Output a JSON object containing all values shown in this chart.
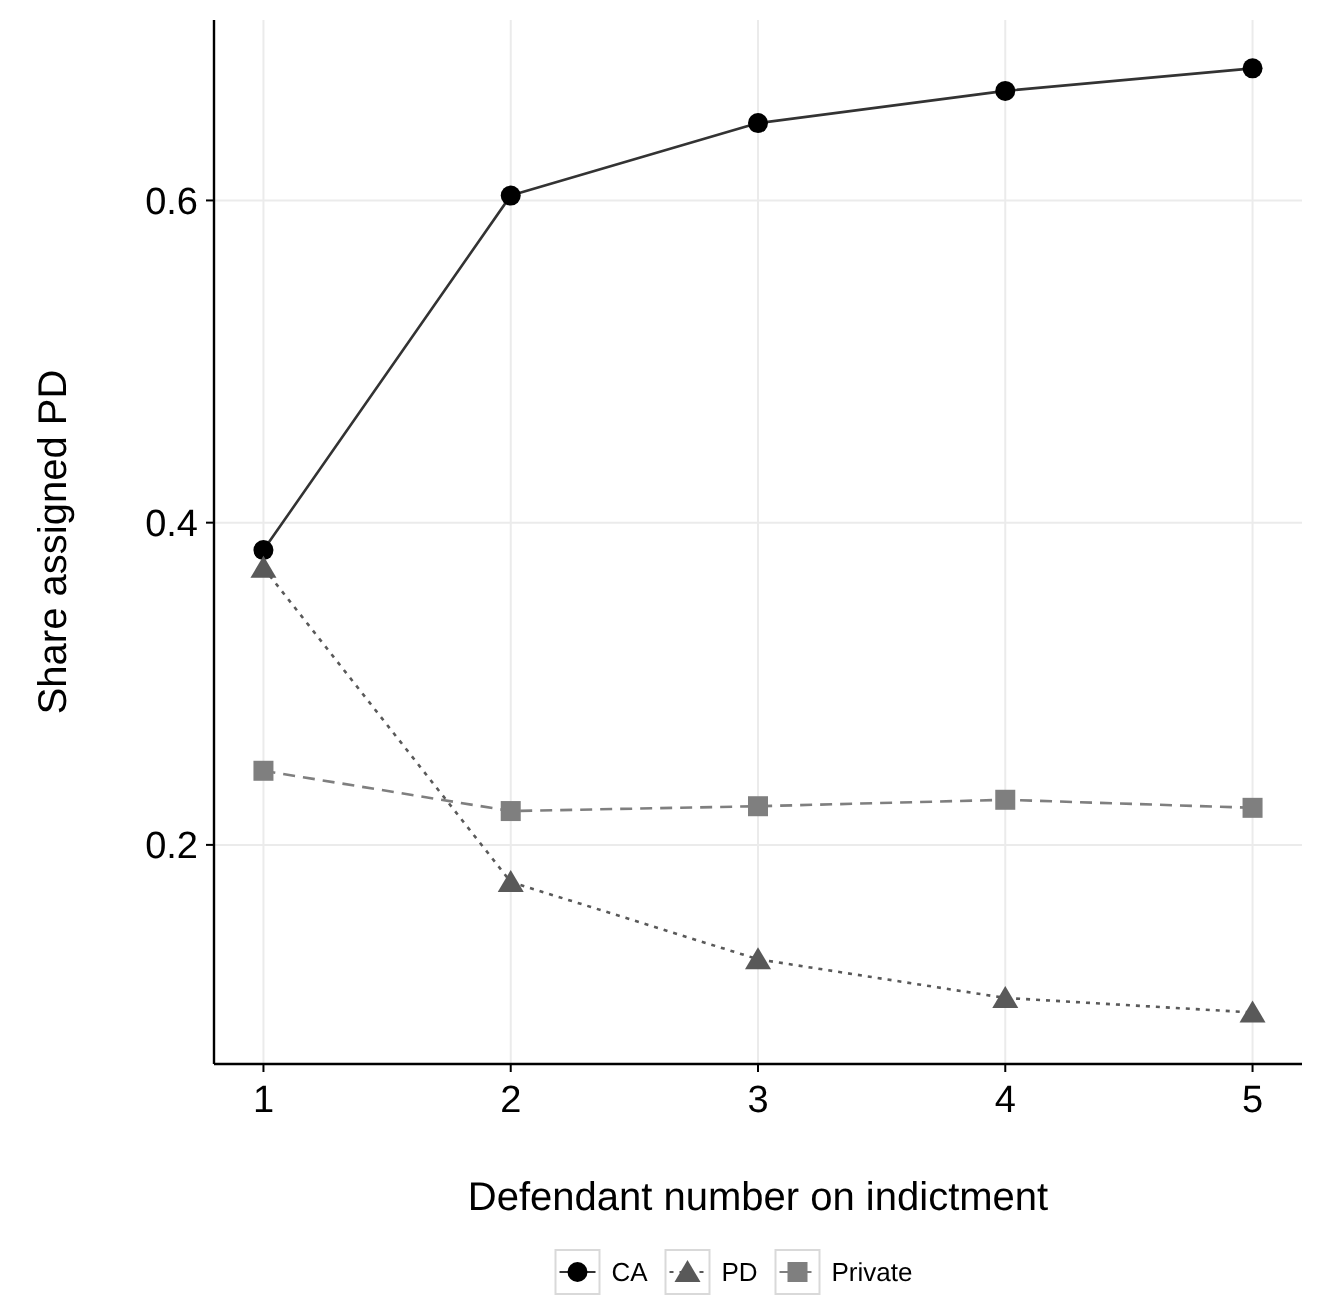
{
  "chart_data": {
    "type": "line",
    "xlabel": "Defendant number on indictment",
    "ylabel": "Share assigned PD",
    "x": [
      1,
      2,
      3,
      4,
      5
    ],
    "series": [
      {
        "name": "CA",
        "color": "#000000",
        "marker": "circle",
        "line_style": "solid",
        "values": [
          0.383,
          0.603,
          0.648,
          0.668,
          0.682
        ]
      },
      {
        "name": "PD",
        "color": "#595959",
        "marker": "triangle",
        "line_style": "dotted",
        "values": [
          0.372,
          0.177,
          0.129,
          0.105,
          0.096
        ]
      },
      {
        "name": "Private",
        "color": "#7f7f7f",
        "marker": "square",
        "line_style": "dashed",
        "values": [
          0.246,
          0.221,
          0.224,
          0.228,
          0.223
        ]
      }
    ],
    "xlim": [
      0.8,
      5.2
    ],
    "xticks": [
      1,
      2,
      3,
      4,
      5
    ],
    "ylim": [
      0.064,
      0.712
    ],
    "yticks": [
      0.2,
      0.4,
      0.6
    ],
    "grid": true,
    "legend": "bottom"
  }
}
